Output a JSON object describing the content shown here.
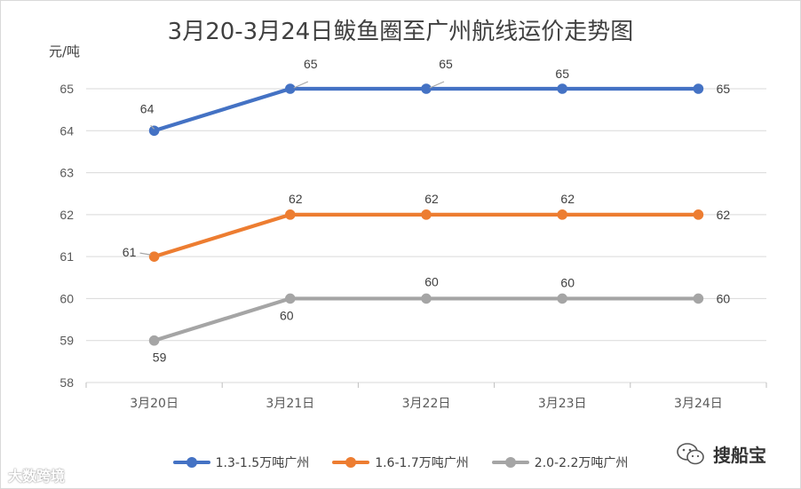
{
  "chart_data": {
    "type": "line",
    "title": "3月20-3月24日鲅鱼圈至广州航线运价走势图",
    "ylabel": "元/吨",
    "xlabel": "",
    "categories": [
      "3月20日",
      "3月21日",
      "3月22日",
      "3月23日",
      "3月24日"
    ],
    "ylim": [
      58,
      65
    ],
    "yticks": [
      58,
      59,
      60,
      61,
      62,
      63,
      64,
      65
    ],
    "grid": true,
    "legend_position": "bottom",
    "series": [
      {
        "name": "1.3-1.5万吨广州",
        "color": "#4472C4",
        "values": [
          64,
          65,
          65,
          65,
          65
        ]
      },
      {
        "name": "1.6-1.7万吨广州",
        "color": "#ED7D31",
        "values": [
          61,
          62,
          62,
          62,
          62
        ]
      },
      {
        "name": "2.0-2.2万吨广州",
        "color": "#A5A5A5",
        "values": [
          59,
          60,
          60,
          60,
          60
        ]
      }
    ]
  },
  "watermarks": {
    "left_text": "大数跨境",
    "right_text": "搜船宝",
    "right_icon": "wechat-icon"
  }
}
